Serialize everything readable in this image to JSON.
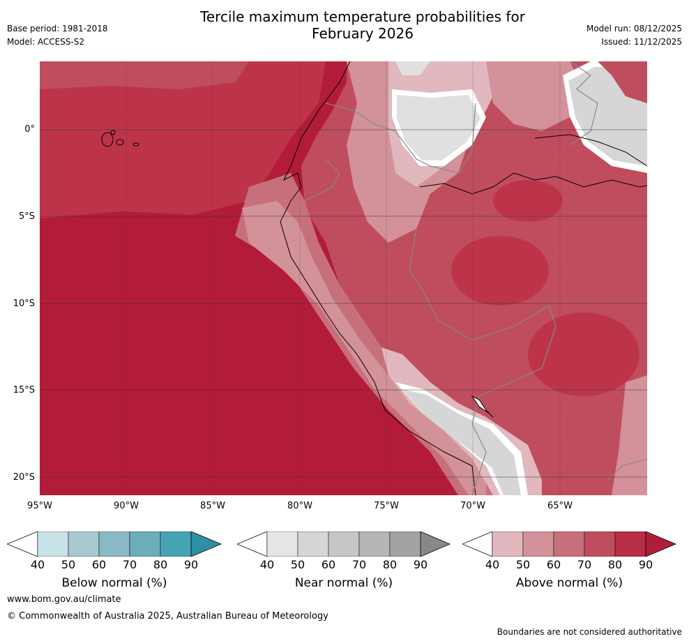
{
  "header": {
    "title_line1": "Tercile maximum temperature probabilities for",
    "title_line2": "February 2026",
    "base_period": "Base period: 1981-2018",
    "model": "Model: ACCESS-S2",
    "model_run": "Model run: 08/12/2025",
    "issued": "Issued: 11/12/2025"
  },
  "map": {
    "lat_labels": [
      "0°",
      "5°S",
      "10°S",
      "15°S",
      "20°S"
    ],
    "lon_labels": [
      "95°W",
      "90°W",
      "85°W",
      "80°W",
      "75°W",
      "70°W",
      "65°W"
    ]
  },
  "legend": {
    "below": {
      "title": "Below normal (%)",
      "ticks": [
        "40",
        "50",
        "60",
        "70",
        "80",
        "90"
      ],
      "colors": [
        "#c9e2e7",
        "#a8c9d0",
        "#8ab8c4",
        "#6aaebb",
        "#47a3b3",
        "#2f8fa3"
      ]
    },
    "near": {
      "title": "Near normal (%)",
      "ticks": [
        "40",
        "50",
        "60",
        "70",
        "80",
        "90"
      ],
      "colors": [
        "#e6e6e6",
        "#d6d6d6",
        "#c6c6c6",
        "#b6b6b6",
        "#a3a3a3",
        "#888888"
      ]
    },
    "above": {
      "title": "Above normal (%)",
      "ticks": [
        "40",
        "50",
        "60",
        "70",
        "80",
        "90"
      ],
      "colors": [
        "#e0b8be",
        "#d39199",
        "#c7707c",
        "#c04d5e",
        "#b82e46",
        "#b01d3a"
      ]
    }
  },
  "footer": {
    "website": "www.bom.gov.au/climate",
    "copyright": "© Commonwealth of Australia 2025, Australian Bureau of Meteorology",
    "disclaimer": "Boundaries are not considered authoritative"
  }
}
